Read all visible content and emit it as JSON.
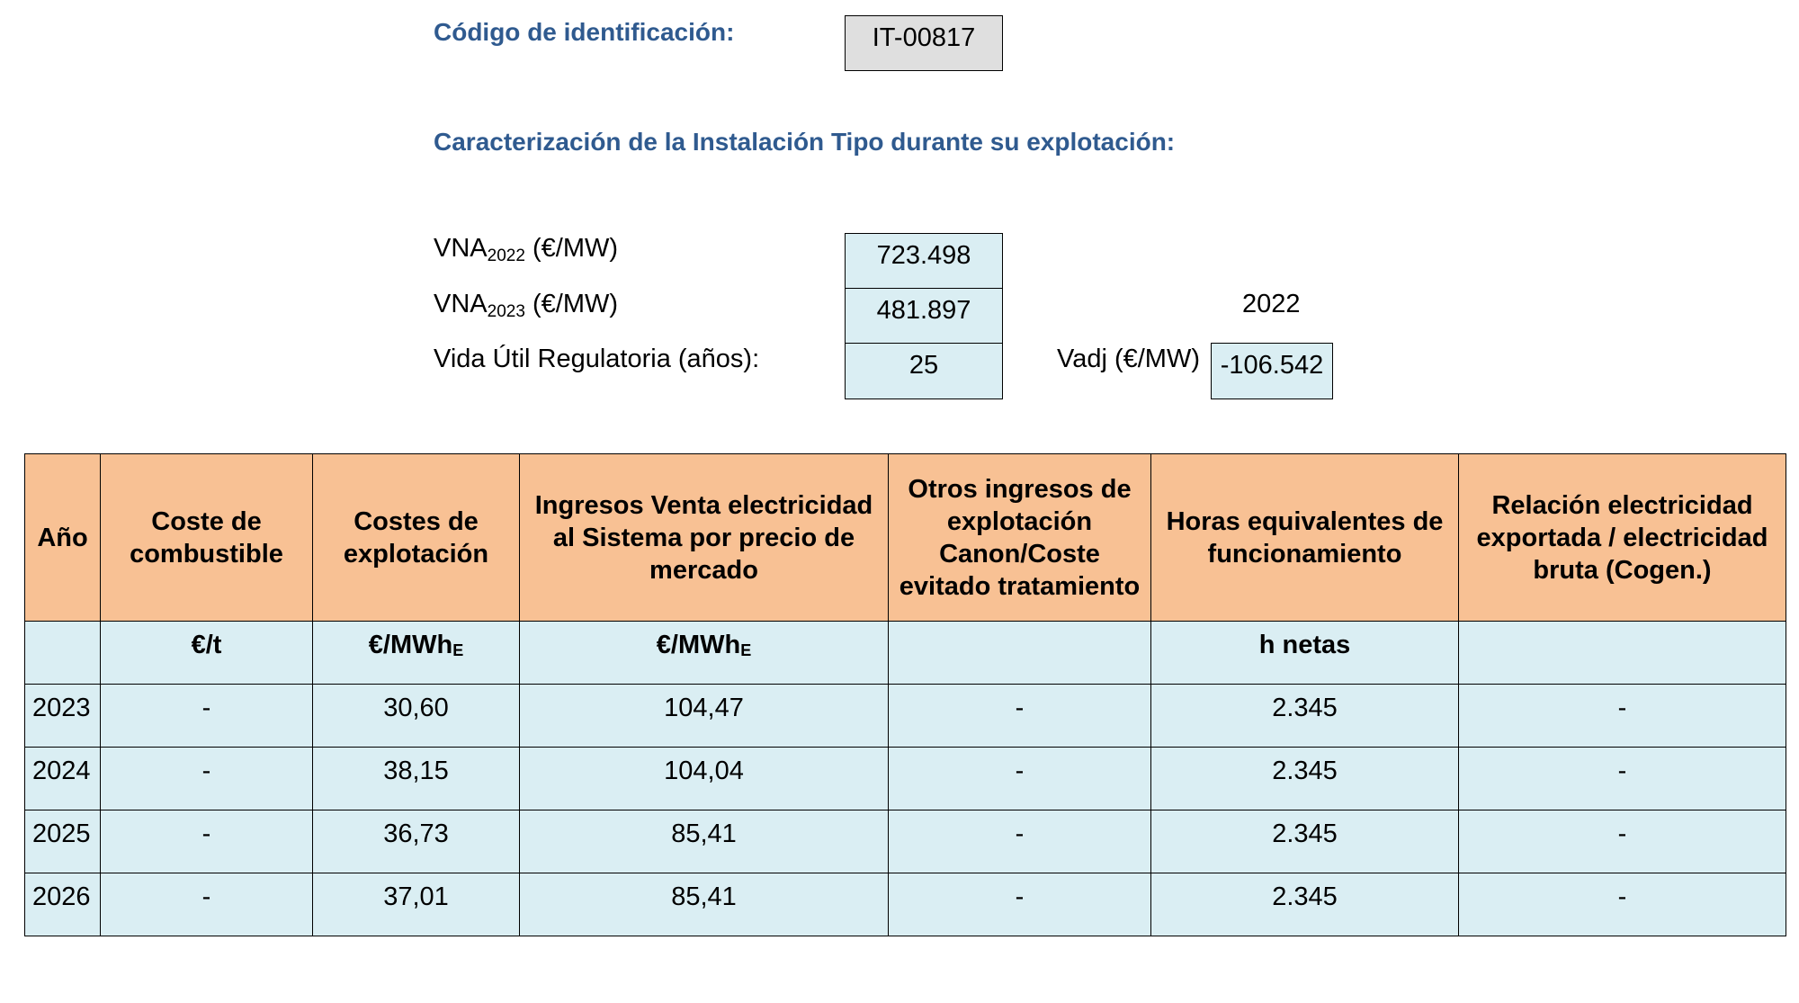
{
  "header": {
    "id_label": "Código de identificación:",
    "id_value": "IT-00817",
    "section_title": "Caracterización de la Instalación Tipo durante su explotación:"
  },
  "params": {
    "vna2022": {
      "label_prefix": "VNA",
      "label_sub": "2022",
      "label_suffix": " (€/MW)",
      "value": "723.498"
    },
    "vna2023": {
      "label_prefix": "VNA",
      "label_sub": "2023",
      "label_suffix": " (€/MW)",
      "value": "481.897"
    },
    "vida_util": {
      "label": "Vida Útil Regulatoria (años):",
      "value": "25"
    },
    "vadj": {
      "year": "2022",
      "label": "Vadj (€/MW)",
      "value": "-106.542"
    }
  },
  "table": {
    "headers": [
      "Año",
      "Coste de combustible",
      "Costes de explotación",
      "Ingresos Venta electricidad al Sistema por precio de mercado",
      "Otros ingresos de explotación Canon/Coste evitado tratamiento",
      "Horas equivalentes de funcionamiento",
      "Relación electricidad exportada / electricidad bruta (Cogen.)"
    ],
    "units": {
      "year": "",
      "fuel": "€/t",
      "opex_main": "€/MWh",
      "opex_sub": "E",
      "income_main": "€/MWh",
      "income_sub": "E",
      "other": "",
      "hours": "h netas",
      "ratio": ""
    },
    "rows": [
      [
        "2023",
        "-",
        "30,60",
        "104,47",
        "-",
        "2.345",
        "-"
      ],
      [
        "2024",
        "-",
        "38,15",
        "104,04",
        "-",
        "2.345",
        "-"
      ],
      [
        "2025",
        "-",
        "36,73",
        "85,41",
        "-",
        "2.345",
        "-"
      ],
      [
        "2026",
        "-",
        "37,01",
        "85,41",
        "-",
        "2.345",
        "-"
      ]
    ]
  }
}
